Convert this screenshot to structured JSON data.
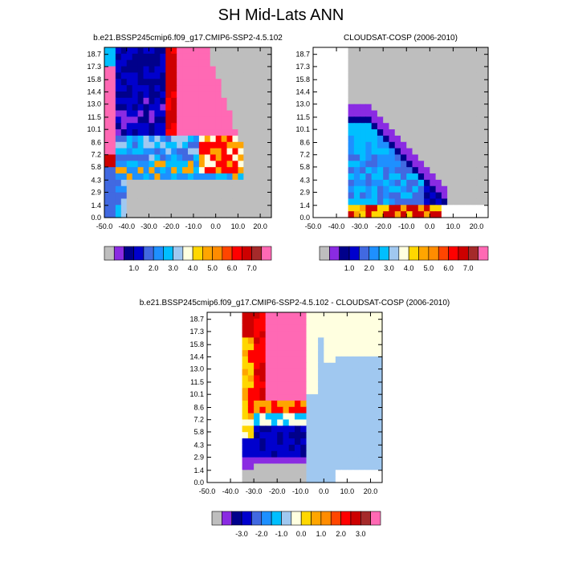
{
  "title": "SH Mid-Lats ANN",
  "chart_data": [
    {
      "type": "heatmap",
      "title": "b.e21.BSSP245cmip6.f09_g17.CMIP6-SSP2-4.5.102",
      "x_ticks": [
        "-50.0",
        "-40.0",
        "-30.0",
        "-20.0",
        "-10.0",
        "0.0",
        "10.0",
        "20.0"
      ],
      "y_ticks": [
        "0.0",
        "1.4",
        "2.9",
        "4.3",
        "5.8",
        "7.2",
        "8.6",
        "10.1",
        "11.5",
        "13.0",
        "14.4",
        "15.8",
        "17.3",
        "18.7"
      ],
      "xlim": [
        -50,
        25
      ],
      "ylim": [
        0,
        19.5
      ],
      "colorbar_labels": [
        "1.0",
        "2.0",
        "3.0",
        "4.0",
        "5.0",
        "6.0",
        "7.0"
      ],
      "colors": [
        "#bebebe",
        "#8a2be2",
        "#00008b",
        "#0000cd",
        "#4169e1",
        "#1e90ff",
        "#00bfff",
        "#a0c8f0",
        "#ffffe0",
        "#ffd700",
        "#ffa500",
        "#ff8c00",
        "#ff4500",
        "#ff0000",
        "#cd0000",
        "#a52a2a",
        "#ff69b4"
      ],
      "grid": false
    },
    {
      "type": "heatmap",
      "title": "CLOUDSAT-COSP (2006-2010)",
      "x_ticks": [
        "-50.0",
        "-40.0",
        "-30.0",
        "-20.0",
        "-10.0",
        "0.0",
        "10.0",
        "20.0"
      ],
      "y_ticks": [
        "0.0",
        "1.4",
        "2.9",
        "4.3",
        "5.8",
        "7.2",
        "8.6",
        "10.1",
        "11.5",
        "13.0",
        "14.4",
        "15.8",
        "17.3",
        "18.7"
      ],
      "xlim": [
        -50,
        25
      ],
      "ylim": [
        0,
        19.5
      ],
      "colorbar_labels": [
        "1.0",
        "2.0",
        "3.0",
        "4.0",
        "5.0",
        "6.0",
        "7.0"
      ],
      "colors": [
        "#bebebe",
        "#8a2be2",
        "#00008b",
        "#0000cd",
        "#4169e1",
        "#1e90ff",
        "#00bfff",
        "#a0c8f0",
        "#ffffe0",
        "#ffd700",
        "#ffa500",
        "#ff8c00",
        "#ff4500",
        "#ff0000",
        "#cd0000",
        "#a52a2a",
        "#ff69b4"
      ],
      "grid": false
    },
    {
      "type": "heatmap",
      "title": "b.e21.BSSP245cmip6.f09_g17.CMIP6-SSP2-4.5.102 - CLOUDSAT-COSP (2006-2010)",
      "x_ticks": [
        "-50.0",
        "-40.0",
        "-30.0",
        "-20.0",
        "-10.0",
        "0.0",
        "10.0",
        "20.0"
      ],
      "y_ticks": [
        "0.0",
        "1.4",
        "2.9",
        "4.3",
        "5.8",
        "7.2",
        "8.6",
        "10.1",
        "11.5",
        "13.0",
        "14.4",
        "15.8",
        "17.3",
        "18.7"
      ],
      "xlim": [
        -50,
        25
      ],
      "ylim": [
        0,
        19.5
      ],
      "colorbar_labels": [
        "-3.0",
        "-2.0",
        "-1.0",
        "0.0",
        "1.0",
        "2.0",
        "3.0"
      ],
      "colors": [
        "#bebebe",
        "#8a2be2",
        "#00008b",
        "#0000cd",
        "#4169e1",
        "#1e90ff",
        "#00bfff",
        "#a0c8f0",
        "#ffffe0",
        "#ffd700",
        "#ffa500",
        "#ff8c00",
        "#ff4500",
        "#ff0000",
        "#cd0000",
        "#a52a2a",
        "#ff69b4"
      ],
      "grid": false
    }
  ]
}
